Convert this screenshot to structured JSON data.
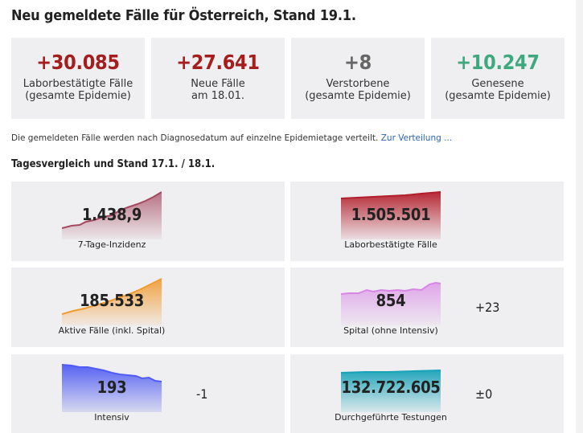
{
  "title": "Neu gemeldete Fälle für Österreich, Stand 19.1.",
  "summary": [
    {
      "value": "+30.085",
      "label1": "Laborbestätigte Fälle",
      "label2": "(gesamte Epidemie)",
      "color": "#a51d1d"
    },
    {
      "value": "+27.641",
      "label1": "Neue Fälle",
      "label2": "am 18.01.",
      "color": "#a51d1d"
    },
    {
      "value": "+8",
      "label1": "Verstorbene",
      "label2": "(gesamte Epidemie)",
      "color": "#666666"
    },
    {
      "value": "+10.247",
      "label1": "Genesene",
      "label2": "(gesamte Epidemie)",
      "color": "#3ea87e"
    }
  ],
  "note": {
    "text": "Die gemeldeten Fälle werden nach Diagnosedatum auf einzelne Epidemietage verteilt.",
    "link": "Zur Verteilung ..."
  },
  "subtitle": "Tagesvergleich und Stand 17.1. / 18.1.",
  "cards": [
    {
      "value": "1.438,9",
      "label": "7-Tage-Inzidenz",
      "delta": "",
      "color": "#a5485f",
      "icon": "sparkline-chart"
    },
    {
      "value": "1.505.501",
      "label": "Laborbestätigte Fälle",
      "delta": "",
      "color": "#b21e2b",
      "icon": "sparkline-chart"
    },
    {
      "value": "185.533",
      "label": "Aktive Fälle (inkl. Spital)",
      "delta": "",
      "color": "#f29a2e",
      "icon": "sparkline-chart"
    },
    {
      "value": "854",
      "label": "Spital (ohne Intensiv)",
      "delta": "+23",
      "color": "#d886e6",
      "icon": "sparkline-chart"
    },
    {
      "value": "193",
      "label": "Intensiv",
      "delta": "-1",
      "color": "#4f5cf2",
      "icon": "sparkline-chart"
    },
    {
      "value": "132.722.605",
      "label": "Durchgeführte Testungen",
      "delta": "±0",
      "color": "#1aa3b8",
      "icon": "sparkline-chart"
    }
  ]
}
